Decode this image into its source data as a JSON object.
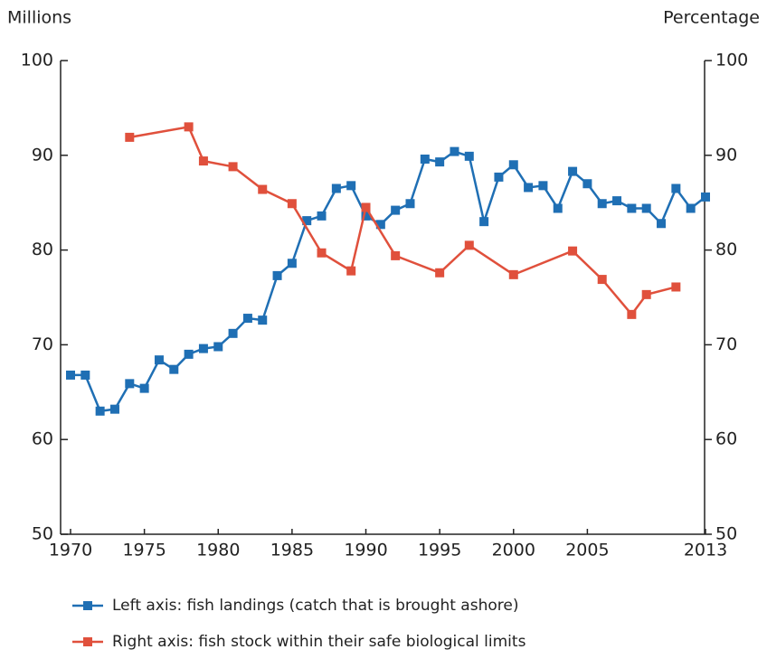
{
  "chart_data": {
    "type": "line",
    "y_axis_label": "Millions",
    "y2_axis_label": "Percentage",
    "xlim": [
      1970,
      2013
    ],
    "xticks": [
      1970,
      1975,
      1980,
      1985,
      1990,
      1995,
      2000,
      2005,
      2013
    ],
    "ylim": [
      50,
      100
    ],
    "yticks": [
      50,
      60,
      70,
      80,
      90,
      100
    ],
    "y2lim": [
      50,
      100
    ],
    "y2ticks": [
      50,
      60,
      70,
      80,
      90,
      100
    ],
    "legend": "bottom",
    "series": [
      {
        "name": "Left axis: fish landings (catch that is brought ashore)",
        "color": "#1f6fb4",
        "axis": "y",
        "x": [
          1970,
          1971,
          1972,
          1973,
          1974,
          1975,
          1976,
          1977,
          1978,
          1979,
          1980,
          1981,
          1982,
          1983,
          1984,
          1985,
          1986,
          1987,
          1988,
          1989,
          1990,
          1991,
          1992,
          1993,
          1994,
          1995,
          1996,
          1997,
          1998,
          1999,
          2000,
          2001,
          2002,
          2003,
          2004,
          2005,
          2006,
          2007,
          2008,
          2009,
          2010,
          2011,
          2012,
          2013
        ],
        "values": [
          66.8,
          66.8,
          63.0,
          63.2,
          65.9,
          65.4,
          68.4,
          67.4,
          69.0,
          69.6,
          69.8,
          71.2,
          72.8,
          72.6,
          77.3,
          78.6,
          83.1,
          83.6,
          86.5,
          86.8,
          83.6,
          82.7,
          84.2,
          84.9,
          89.6,
          89.3,
          90.4,
          89.9,
          83.0,
          87.7,
          89.0,
          86.6,
          86.8,
          84.4,
          88.3,
          87.0,
          84.9,
          85.2,
          84.4,
          84.4,
          82.8,
          86.5,
          84.4,
          85.6
        ]
      },
      {
        "name": "Right axis: fish stock within their safe biological limits",
        "color": "#e0503c",
        "axis": "y2",
        "x": [
          1974,
          1978,
          1979,
          1981,
          1983,
          1985,
          1987,
          1989,
          1990,
          1992,
          1995,
          1997,
          2000,
          2004,
          2006,
          2008,
          2009,
          2011
        ],
        "values": [
          91.9,
          93.0,
          89.4,
          88.8,
          86.4,
          84.9,
          79.7,
          77.8,
          84.5,
          79.4,
          77.6,
          80.5,
          77.4,
          79.9,
          76.9,
          73.2,
          75.3,
          76.1
        ]
      }
    ]
  }
}
